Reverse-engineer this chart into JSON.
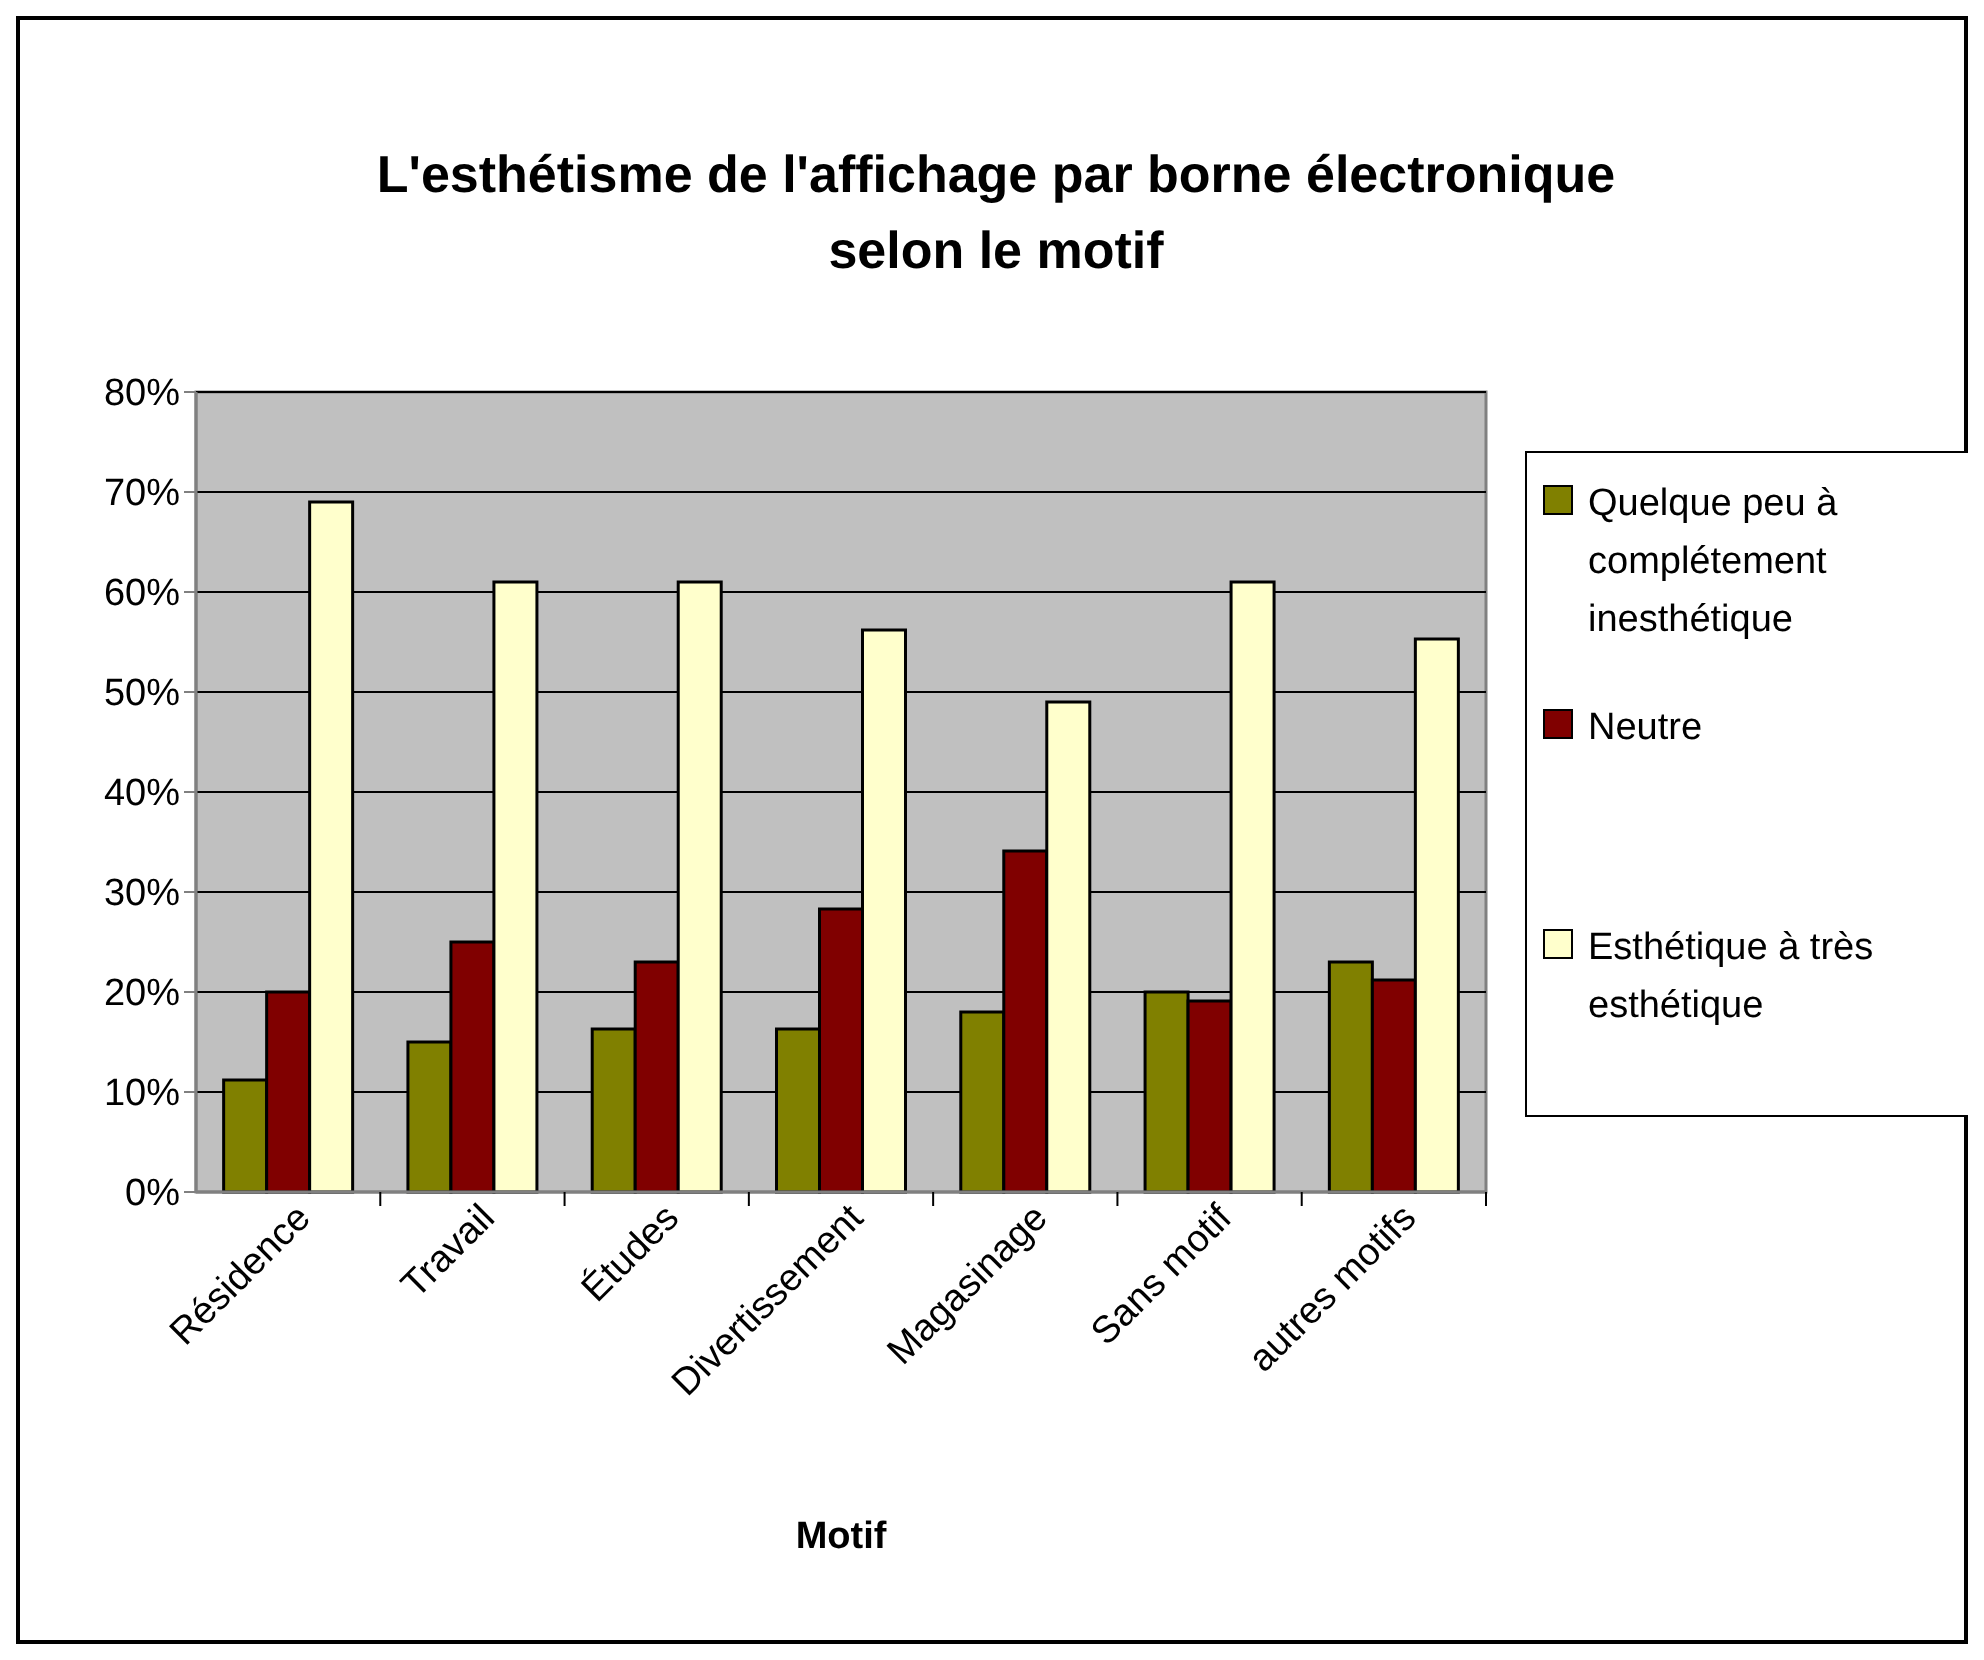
{
  "chart_data": {
    "type": "bar",
    "title": "L'esthétisme de l'affichage par borne électronique selon le motif",
    "xlabel": "Motif",
    "categories": [
      "Résidence",
      "Travail",
      "Études",
      "Divertissement",
      "Magasinage",
      "Sans motif",
      "autres motifs"
    ],
    "series": [
      {
        "name": "Quelque peu à complétement inesthétique",
        "color": "#808000",
        "values": [
          11.2,
          15,
          16.3,
          16.3,
          18,
          20,
          23
        ]
      },
      {
        "name": "Neutre",
        "color": "#800000",
        "values": [
          20,
          25,
          23,
          28.3,
          34.1,
          19.1,
          21.2
        ]
      },
      {
        "name": "Esthétique à très esthétique",
        "color": "#ffffcc",
        "values": [
          69,
          61,
          61,
          56.2,
          49,
          61,
          55.3
        ]
      }
    ],
    "ylim": [
      0,
      80
    ],
    "yticks": [
      {
        "value": 0,
        "label": "0%"
      },
      {
        "value": 10,
        "label": "10%"
      },
      {
        "value": 20,
        "label": "20%"
      },
      {
        "value": 30,
        "label": "30%"
      },
      {
        "value": 40,
        "label": "40%"
      },
      {
        "value": 50,
        "label": "50%"
      },
      {
        "value": 60,
        "label": "60%"
      },
      {
        "value": 70,
        "label": "70%"
      },
      {
        "value": 80,
        "label": "80%"
      }
    ],
    "grid": "y",
    "legend": "right"
  }
}
